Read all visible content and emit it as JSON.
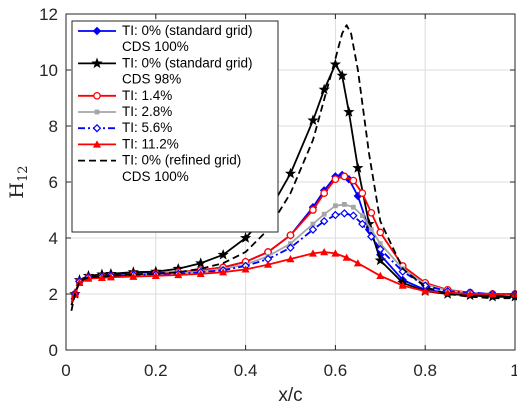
{
  "chart_data": {
    "type": "line",
    "xlabel": "x/c",
    "ylabel": {
      "main": "H",
      "sub": "12"
    },
    "xlim": [
      0,
      1
    ],
    "ylim": [
      0,
      12
    ],
    "xticks": [
      0,
      0.2,
      0.4,
      0.6,
      0.8,
      1
    ],
    "xtick_labels": [
      "0",
      "0.2",
      "0.4",
      "0.6",
      "0.8",
      "1"
    ],
    "yticks": [
      0,
      2,
      4,
      6,
      8,
      10,
      12
    ],
    "ytick_labels": [
      "0",
      "2",
      "4",
      "6",
      "8",
      "10",
      "12"
    ],
    "grid": true,
    "legend_position": "top-left",
    "series": [
      {
        "name": "TI: 0% (standard grid)\nCDS 100%",
        "color": "#0000ff",
        "dash": "solid",
        "marker": "diamond-filled",
        "x": [
          0.012,
          0.02,
          0.03,
          0.05,
          0.08,
          0.1,
          0.15,
          0.2,
          0.25,
          0.3,
          0.35,
          0.4,
          0.45,
          0.5,
          0.55,
          0.575,
          0.6,
          0.615,
          0.63,
          0.65,
          0.675,
          0.7,
          0.75,
          0.8,
          0.85,
          0.9,
          0.95,
          1.0
        ],
        "y": [
          1.8,
          2.0,
          2.45,
          2.6,
          2.65,
          2.7,
          2.72,
          2.75,
          2.78,
          2.85,
          2.95,
          3.15,
          3.5,
          4.1,
          5.1,
          5.7,
          6.2,
          6.25,
          6.1,
          5.5,
          4.3,
          3.4,
          2.5,
          2.15,
          2.05,
          2.0,
          1.95,
          1.9
        ]
      },
      {
        "name": "TI: 0% (standard grid)\nCDS 98%",
        "color": "#000000",
        "dash": "solid",
        "marker": "star",
        "x": [
          0.012,
          0.02,
          0.03,
          0.05,
          0.08,
          0.1,
          0.15,
          0.2,
          0.25,
          0.3,
          0.35,
          0.4,
          0.45,
          0.5,
          0.55,
          0.575,
          0.6,
          0.615,
          0.63,
          0.65,
          0.675,
          0.7,
          0.75,
          0.8,
          0.85,
          0.9,
          0.95,
          1.0
        ],
        "y": [
          1.6,
          2.0,
          2.5,
          2.65,
          2.7,
          2.72,
          2.78,
          2.8,
          2.9,
          3.1,
          3.4,
          4.0,
          4.9,
          6.3,
          8.2,
          9.3,
          10.2,
          9.8,
          8.5,
          6.5,
          4.5,
          3.2,
          2.4,
          2.1,
          2.0,
          1.95,
          1.9,
          1.9
        ]
      },
      {
        "name": "TI: 1.4%",
        "color": "#ff0000",
        "dash": "solid",
        "marker": "circle-open",
        "x": [
          0.012,
          0.02,
          0.03,
          0.05,
          0.08,
          0.1,
          0.15,
          0.2,
          0.25,
          0.3,
          0.35,
          0.4,
          0.45,
          0.5,
          0.55,
          0.575,
          0.6,
          0.62,
          0.64,
          0.66,
          0.68,
          0.7,
          0.75,
          0.8,
          0.85,
          0.9,
          0.95,
          1.0
        ],
        "y": [
          1.8,
          2.0,
          2.45,
          2.6,
          2.62,
          2.65,
          2.7,
          2.72,
          2.78,
          2.85,
          2.95,
          3.15,
          3.5,
          4.1,
          5.0,
          5.6,
          6.1,
          6.2,
          6.05,
          5.6,
          4.9,
          4.2,
          3.0,
          2.4,
          2.15,
          2.05,
          2.0,
          2.0
        ]
      },
      {
        "name": "TI: 2.8%",
        "color": "#a6a6a6",
        "dash": "solid",
        "marker": "square-filled",
        "x": [
          0.012,
          0.02,
          0.03,
          0.05,
          0.08,
          0.1,
          0.15,
          0.2,
          0.25,
          0.3,
          0.35,
          0.4,
          0.45,
          0.5,
          0.55,
          0.575,
          0.6,
          0.62,
          0.64,
          0.66,
          0.68,
          0.7,
          0.75,
          0.8,
          0.85,
          0.9,
          0.95,
          1.0
        ],
        "y": [
          1.8,
          2.0,
          2.45,
          2.6,
          2.62,
          2.65,
          2.7,
          2.72,
          2.75,
          2.8,
          2.9,
          3.05,
          3.35,
          3.8,
          4.5,
          4.85,
          5.15,
          5.2,
          5.1,
          4.8,
          4.3,
          3.8,
          2.9,
          2.35,
          2.12,
          2.05,
          2.0,
          2.0
        ]
      },
      {
        "name": "TI: 5.6%",
        "color": "#0000ff",
        "dash": "dashdot",
        "marker": "diamond-open",
        "x": [
          0.012,
          0.02,
          0.03,
          0.05,
          0.08,
          0.1,
          0.15,
          0.2,
          0.25,
          0.3,
          0.35,
          0.4,
          0.45,
          0.5,
          0.55,
          0.575,
          0.6,
          0.62,
          0.64,
          0.66,
          0.68,
          0.7,
          0.75,
          0.8,
          0.85,
          0.9,
          0.95,
          1.0
        ],
        "y": [
          1.8,
          2.0,
          2.45,
          2.6,
          2.62,
          2.65,
          2.68,
          2.7,
          2.72,
          2.78,
          2.85,
          3.0,
          3.25,
          3.65,
          4.3,
          4.6,
          4.82,
          4.88,
          4.8,
          4.5,
          4.05,
          3.6,
          2.8,
          2.3,
          2.1,
          2.05,
          2.0,
          2.0
        ]
      },
      {
        "name": "TI: 11.2%",
        "color": "#ff0000",
        "dash": "solid",
        "marker": "triangle-filled",
        "x": [
          0.012,
          0.02,
          0.03,
          0.05,
          0.08,
          0.1,
          0.15,
          0.2,
          0.25,
          0.3,
          0.35,
          0.4,
          0.45,
          0.5,
          0.55,
          0.575,
          0.6,
          0.625,
          0.65,
          0.7,
          0.75,
          0.8,
          0.85,
          0.9,
          0.95,
          1.0
        ],
        "y": [
          1.7,
          2.0,
          2.4,
          2.55,
          2.58,
          2.6,
          2.62,
          2.65,
          2.68,
          2.72,
          2.78,
          2.88,
          3.05,
          3.25,
          3.45,
          3.5,
          3.45,
          3.3,
          3.1,
          2.65,
          2.3,
          2.1,
          2.05,
          2.0,
          2.0,
          2.0
        ]
      },
      {
        "name": "TI: 0% (refined grid)\nCDS 100%",
        "color": "#000000",
        "dash": "dashed",
        "marker": "none",
        "x": [
          0.012,
          0.02,
          0.03,
          0.05,
          0.08,
          0.1,
          0.15,
          0.2,
          0.25,
          0.3,
          0.35,
          0.4,
          0.45,
          0.5,
          0.55,
          0.6,
          0.615,
          0.625,
          0.635,
          0.65,
          0.675,
          0.7,
          0.75,
          0.8,
          0.85,
          0.9,
          0.95,
          1.0
        ],
        "y": [
          1.4,
          2.0,
          2.45,
          2.6,
          2.62,
          2.65,
          2.7,
          2.72,
          2.78,
          2.9,
          3.1,
          3.5,
          4.3,
          5.6,
          7.5,
          10.4,
          11.3,
          11.6,
          11.3,
          10.0,
          7.0,
          4.6,
          2.9,
          2.25,
          2.0,
          1.9,
          1.85,
          1.85
        ]
      }
    ]
  }
}
